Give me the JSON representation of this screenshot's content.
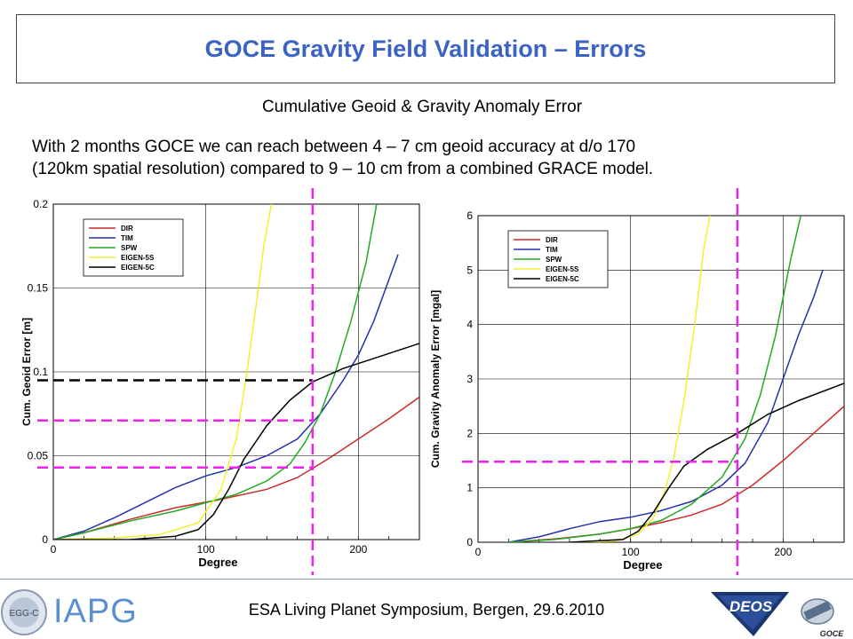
{
  "header": {
    "title": "GOCE Gravity Field Validation – Errors",
    "subtitle": "Cumulative Geoid & Gravity Anomaly Error",
    "description_line1": "With 2 months GOCE we can reach between 4 – 7 cm geoid accuracy at d/o 170",
    "description_line2": "(120km spatial resolution) compared to 9 – 10 cm from a combined GRACE model."
  },
  "footer": {
    "text": "ESA Living Planet Symposium, Bergen, 29.6.2010",
    "iapg": "IAPG",
    "egg_logo_text": "EGG-C",
    "deos_logo_text": "DEOS",
    "goce_logo_text": "GOCE"
  },
  "colors": {
    "DIR": "#cc2a2a",
    "TIM": "#2233aa",
    "SPW": "#22aa22",
    "EIGEN-5S": "#f2ef2c",
    "EIGEN-5C": "#000000",
    "marker": "#ee22ee",
    "title": "#3a63c4"
  },
  "chart_data": [
    {
      "type": "line",
      "xlabel": "Degree",
      "ylabel": "Cum. Geoid Error [m]",
      "xlim": [
        0,
        240
      ],
      "ylim": [
        0,
        0.2
      ],
      "xticks": [
        0,
        100,
        200
      ],
      "yticks": [
        0,
        0.05,
        0.1,
        0.15,
        0.2
      ],
      "ytick_labels": [
        "0",
        "0.05",
        "0.1",
        "0.15",
        "0.2"
      ],
      "grid": true,
      "legend_position": "top-left",
      "vertical_marker_x": 170,
      "horizontal_markers": [
        {
          "y": 0.095,
          "color": "black"
        },
        {
          "y": 0.071,
          "color": "magenta"
        },
        {
          "y": 0.043,
          "color": "magenta"
        }
      ],
      "series": [
        {
          "name": "DIR",
          "points": [
            [
              0,
              0
            ],
            [
              20,
              0.004
            ],
            [
              50,
              0.012
            ],
            [
              80,
              0.019
            ],
            [
              110,
              0.024
            ],
            [
              140,
              0.03
            ],
            [
              160,
              0.037
            ],
            [
              180,
              0.048
            ],
            [
              200,
              0.06
            ],
            [
              220,
              0.072
            ],
            [
              240,
              0.085
            ]
          ]
        },
        {
          "name": "TIM",
          "points": [
            [
              0,
              0
            ],
            [
              20,
              0.005
            ],
            [
              40,
              0.013
            ],
            [
              60,
              0.022
            ],
            [
              80,
              0.031
            ],
            [
              100,
              0.038
            ],
            [
              120,
              0.043
            ],
            [
              140,
              0.05
            ],
            [
              160,
              0.06
            ],
            [
              175,
              0.075
            ],
            [
              190,
              0.095
            ],
            [
              200,
              0.11
            ],
            [
              210,
              0.13
            ],
            [
              220,
              0.155
            ],
            [
              226,
              0.17
            ]
          ]
        },
        {
          "name": "SPW",
          "points": [
            [
              0,
              0
            ],
            [
              20,
              0.004
            ],
            [
              50,
              0.011
            ],
            [
              80,
              0.017
            ],
            [
              100,
              0.022
            ],
            [
              120,
              0.027
            ],
            [
              140,
              0.035
            ],
            [
              155,
              0.045
            ],
            [
              165,
              0.058
            ],
            [
              175,
              0.075
            ],
            [
              185,
              0.1
            ],
            [
              195,
              0.13
            ],
            [
              205,
              0.165
            ],
            [
              212,
              0.2
            ]
          ]
        },
        {
          "name": "EIGEN-5S",
          "points": [
            [
              0,
              0
            ],
            [
              40,
              0.001
            ],
            [
              70,
              0.003
            ],
            [
              95,
              0.01
            ],
            [
              110,
              0.03
            ],
            [
              120,
              0.06
            ],
            [
              127,
              0.1
            ],
            [
              133,
              0.14
            ],
            [
              138,
              0.175
            ],
            [
              143,
              0.2
            ]
          ]
        },
        {
          "name": "EIGEN-5C",
          "points": [
            [
              0,
              0
            ],
            [
              50,
              0.0
            ],
            [
              80,
              0.002
            ],
            [
              95,
              0.006
            ],
            [
              105,
              0.015
            ],
            [
              115,
              0.03
            ],
            [
              125,
              0.048
            ],
            [
              140,
              0.068
            ],
            [
              155,
              0.083
            ],
            [
              170,
              0.094
            ],
            [
              190,
              0.102
            ],
            [
              210,
              0.108
            ],
            [
              240,
              0.117
            ]
          ]
        }
      ]
    },
    {
      "type": "line",
      "xlabel": "Degree",
      "ylabel": "Cum. Gravity Anomaly Error [mgal]",
      "xlim": [
        0,
        240
      ],
      "ylim": [
        0,
        6
      ],
      "xticks": [
        0,
        100,
        200
      ],
      "yticks": [
        0,
        1,
        2,
        3,
        4,
        5,
        6
      ],
      "ytick_labels": [
        "0",
        "1",
        "2",
        "3",
        "4",
        "5",
        "6"
      ],
      "grid": true,
      "legend_position": "top-left",
      "vertical_marker_x": 170,
      "horizontal_markers": [
        {
          "y": 1.48,
          "color": "magenta"
        }
      ],
      "series": [
        {
          "name": "DIR",
          "points": [
            [
              20,
              0
            ],
            [
              50,
              0.06
            ],
            [
              80,
              0.15
            ],
            [
              100,
              0.25
            ],
            [
              120,
              0.36
            ],
            [
              140,
              0.5
            ],
            [
              160,
              0.7
            ],
            [
              180,
              1.05
            ],
            [
              200,
              1.5
            ],
            [
              220,
              2.0
            ],
            [
              240,
              2.5
            ]
          ]
        },
        {
          "name": "TIM",
          "points": [
            [
              20,
              0
            ],
            [
              40,
              0.1
            ],
            [
              60,
              0.25
            ],
            [
              80,
              0.38
            ],
            [
              100,
              0.46
            ],
            [
              120,
              0.58
            ],
            [
              140,
              0.75
            ],
            [
              160,
              1.05
            ],
            [
              175,
              1.45
            ],
            [
              190,
              2.2
            ],
            [
              200,
              3.0
            ],
            [
              210,
              3.8
            ],
            [
              220,
              4.5
            ],
            [
              226,
              5.0
            ]
          ]
        },
        {
          "name": "SPW",
          "points": [
            [
              20,
              0
            ],
            [
              50,
              0.05
            ],
            [
              80,
              0.15
            ],
            [
              100,
              0.25
            ],
            [
              120,
              0.4
            ],
            [
              140,
              0.7
            ],
            [
              160,
              1.2
            ],
            [
              175,
              1.9
            ],
            [
              185,
              2.7
            ],
            [
              195,
              3.8
            ],
            [
              205,
              5.2
            ],
            [
              212,
              6.05
            ]
          ]
        },
        {
          "name": "EIGEN-5S",
          "points": [
            [
              60,
              0
            ],
            [
              90,
              0.02
            ],
            [
              105,
              0.15
            ],
            [
              115,
              0.45
            ],
            [
              122,
              0.9
            ],
            [
              128,
              1.5
            ],
            [
              135,
              2.6
            ],
            [
              142,
              4.0
            ],
            [
              148,
              5.4
            ],
            [
              152,
              6.0
            ]
          ]
        },
        {
          "name": "EIGEN-5C",
          "points": [
            [
              60,
              0
            ],
            [
              95,
              0.05
            ],
            [
              105,
              0.2
            ],
            [
              115,
              0.55
            ],
            [
              125,
              1.0
            ],
            [
              135,
              1.4
            ],
            [
              150,
              1.7
            ],
            [
              170,
              2.0
            ],
            [
              190,
              2.35
            ],
            [
              210,
              2.6
            ],
            [
              240,
              2.92
            ]
          ]
        }
      ]
    }
  ]
}
